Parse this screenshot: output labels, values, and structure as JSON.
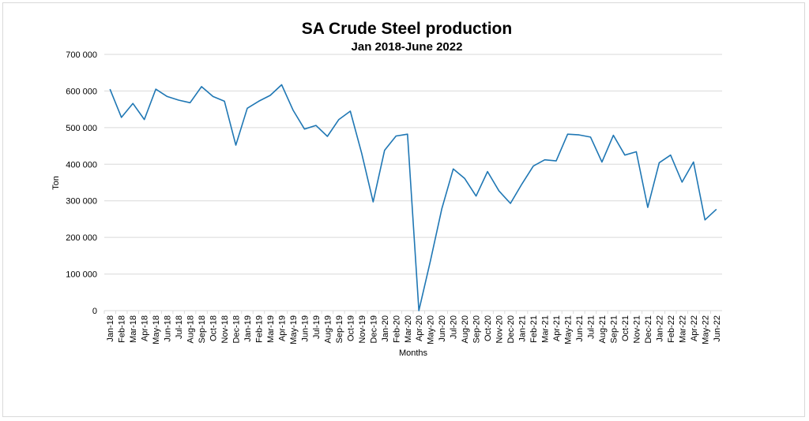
{
  "chart_data": {
    "type": "line",
    "title": "SA Crude Steel production",
    "subtitle": "Jan 2018-June 2022",
    "xlabel": "Months",
    "ylabel": "Ton",
    "ylim": [
      0,
      700000
    ],
    "yticks": [
      0,
      100000,
      200000,
      300000,
      400000,
      500000,
      600000,
      700000
    ],
    "ytick_labels": [
      "0",
      "100 000",
      "200 000",
      "300 000",
      "400 000",
      "500 000",
      "600 000",
      "700 000"
    ],
    "grid": true,
    "legend": "none",
    "line_color": "#1f77b4",
    "grid_color": "#d9d9d9",
    "categories": [
      "Jan-18",
      "Feb-18",
      "Mar-18",
      "Apr-18",
      "May-18",
      "Jun-18",
      "Jul-18",
      "Aug-18",
      "Sep-18",
      "Oct-18",
      "Nov-18",
      "Dec-18",
      "Jan-19",
      "Feb-19",
      "Mar-19",
      "Apr-19",
      "May-19",
      "Jun-19",
      "Jul-19",
      "Aug-19",
      "Sep-19",
      "Oct-19",
      "Nov-19",
      "Dec-19",
      "Jan-20",
      "Feb-20",
      "Mar-20",
      "Apr-20",
      "May-20",
      "Jun-20",
      "Jul-20",
      "Aug-20",
      "Sep-20",
      "Oct-20",
      "Nov-20",
      "Dec-20",
      "Jan-21",
      "Feb-21",
      "Mar-21",
      "Apr-21",
      "May-21",
      "Jun-21",
      "Jul-21",
      "Aug-21",
      "Sep-21",
      "Oct-21",
      "Nov-21",
      "Dec-21",
      "Jan-22",
      "Feb-22",
      "Mar-22",
      "Apr-22",
      "May-22",
      "Jun-22"
    ],
    "values": [
      605000,
      528000,
      566000,
      522000,
      605000,
      585000,
      575000,
      568000,
      612000,
      585000,
      572000,
      452000,
      553000,
      572000,
      588000,
      617000,
      548000,
      496000,
      506000,
      476000,
      522000,
      545000,
      430000,
      297000,
      438000,
      477000,
      482000,
      0,
      135000,
      278000,
      387000,
      361000,
      313000,
      380000,
      327000,
      293000,
      346000,
      395000,
      412000,
      409000,
      482000,
      480000,
      474000,
      406000,
      479000,
      425000,
      434000,
      282000,
      404000,
      425000,
      351000,
      406000,
      248000,
      277000
    ]
  }
}
